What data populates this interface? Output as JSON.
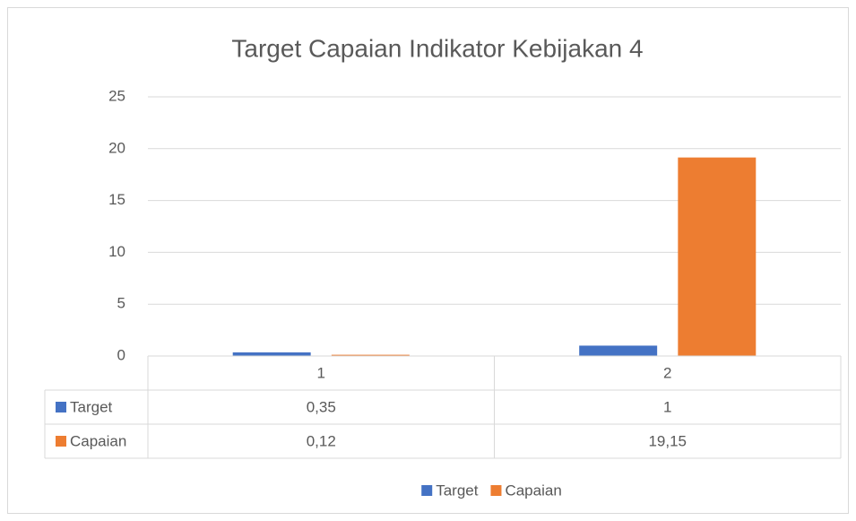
{
  "chart_data": {
    "type": "bar",
    "title": "Target Capaian Indikator Kebijakan 4",
    "categories": [
      "1",
      "2"
    ],
    "series": [
      {
        "name": "Target",
        "color": "#4472c4",
        "values": [
          0.35,
          1
        ],
        "value_labels": [
          "0,35",
          "1"
        ]
      },
      {
        "name": "Capaian",
        "color": "#ed7d31",
        "values": [
          0.12,
          19.15
        ],
        "value_labels": [
          "0,12",
          "19,15"
        ]
      }
    ],
    "ylim": [
      0,
      25
    ],
    "yticks": [
      0,
      5,
      10,
      15,
      20,
      25
    ],
    "grid": true,
    "legend": "bottom",
    "data_table": true
  }
}
